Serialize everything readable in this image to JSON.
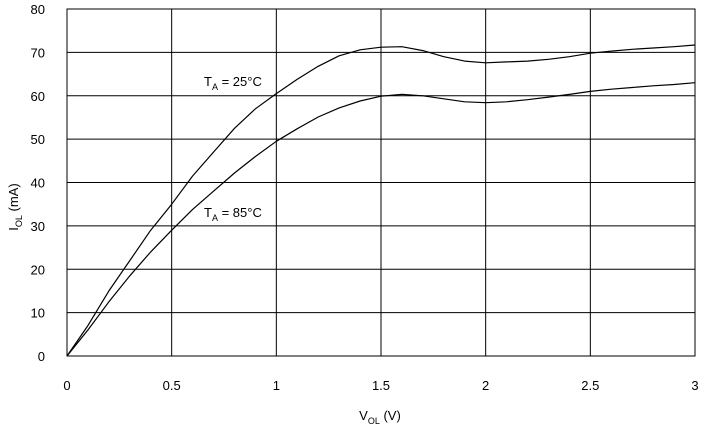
{
  "chart_data": {
    "type": "line",
    "xlabel": {
      "main": "V",
      "sub": "OL",
      "suffix": " (V)"
    },
    "ylabel": {
      "main": "I",
      "sub": "OL",
      "suffix": " (mA)"
    },
    "xlim": [
      0,
      3
    ],
    "ylim": [
      0,
      80
    ],
    "x_ticks": [
      0,
      0.5,
      1,
      1.5,
      2,
      2.5,
      3
    ],
    "x_tick_labels": [
      "0",
      "0.5",
      "1",
      "1.5",
      "2",
      "2.5",
      "3"
    ],
    "y_ticks": [
      0,
      10,
      20,
      30,
      40,
      50,
      60,
      70,
      80
    ],
    "y_tick_labels": [
      "0",
      "10",
      "20",
      "30",
      "40",
      "50",
      "60",
      "70",
      "80"
    ],
    "grid": true,
    "series": [
      {
        "annotation": {
          "main": "T",
          "sub": "A",
          "suffix": " = 25°C"
        },
        "color": "#000000",
        "points": [
          [
            0,
            0
          ],
          [
            0.1,
            7
          ],
          [
            0.2,
            15
          ],
          [
            0.3,
            22
          ],
          [
            0.4,
            29
          ],
          [
            0.5,
            35
          ],
          [
            0.6,
            41.5
          ],
          [
            0.7,
            47
          ],
          [
            0.8,
            52.5
          ],
          [
            0.9,
            57
          ],
          [
            1.0,
            60.5
          ],
          [
            1.1,
            63.8
          ],
          [
            1.2,
            66.8
          ],
          [
            1.3,
            69.2
          ],
          [
            1.4,
            70.6
          ],
          [
            1.5,
            71.2
          ],
          [
            1.6,
            71.3
          ],
          [
            1.7,
            70.4
          ],
          [
            1.8,
            69.0
          ],
          [
            1.9,
            68.0
          ],
          [
            2.0,
            67.6
          ],
          [
            2.1,
            67.8
          ],
          [
            2.2,
            68.0
          ],
          [
            2.3,
            68.4
          ],
          [
            2.4,
            69.0
          ],
          [
            2.5,
            69.8
          ],
          [
            2.6,
            70.3
          ],
          [
            2.7,
            70.7
          ],
          [
            2.8,
            71.0
          ],
          [
            2.9,
            71.3
          ],
          [
            3.0,
            71.7
          ]
        ]
      },
      {
        "annotation": {
          "main": "T",
          "sub": "A",
          "suffix": " = 85°C"
        },
        "color": "#000000",
        "points": [
          [
            0,
            0
          ],
          [
            0.1,
            6
          ],
          [
            0.2,
            12.5
          ],
          [
            0.3,
            18.5
          ],
          [
            0.4,
            24
          ],
          [
            0.5,
            29
          ],
          [
            0.6,
            33.8
          ],
          [
            0.7,
            38
          ],
          [
            0.8,
            42.2
          ],
          [
            0.9,
            46
          ],
          [
            1.0,
            49.5
          ],
          [
            1.1,
            52.4
          ],
          [
            1.2,
            55.1
          ],
          [
            1.3,
            57.2
          ],
          [
            1.4,
            58.8
          ],
          [
            1.5,
            59.9
          ],
          [
            1.6,
            60.3
          ],
          [
            1.7,
            60.0
          ],
          [
            1.8,
            59.3
          ],
          [
            1.9,
            58.6
          ],
          [
            2.0,
            58.4
          ],
          [
            2.1,
            58.6
          ],
          [
            2.2,
            59.1
          ],
          [
            2.3,
            59.7
          ],
          [
            2.4,
            60.3
          ],
          [
            2.5,
            61.0
          ],
          [
            2.6,
            61.5
          ],
          [
            2.7,
            61.9
          ],
          [
            2.8,
            62.3
          ],
          [
            2.9,
            62.6
          ],
          [
            3.0,
            63.0
          ]
        ]
      }
    ]
  }
}
